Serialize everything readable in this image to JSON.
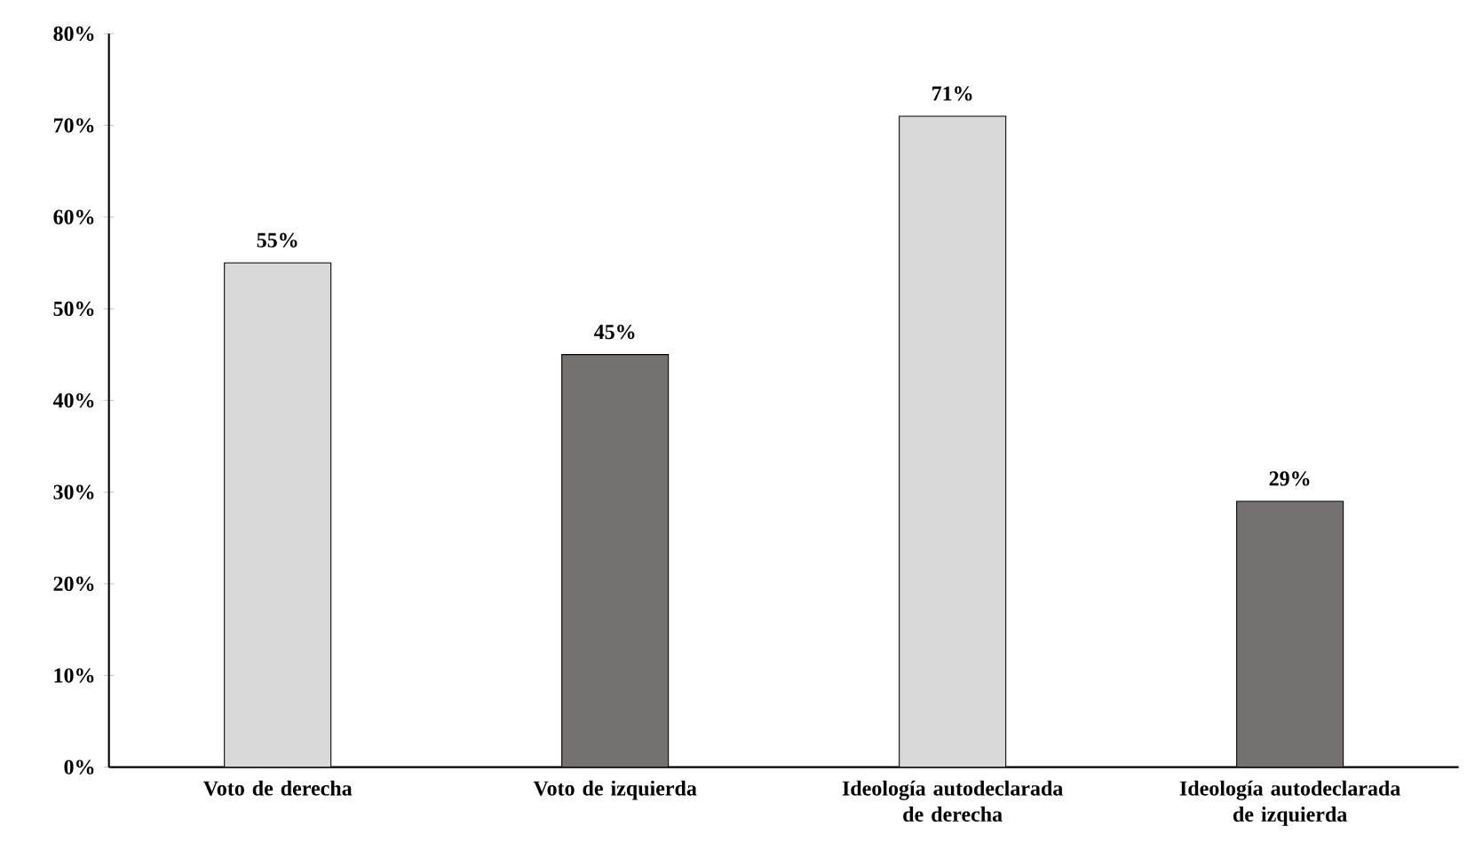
{
  "chart_data": {
    "type": "bar",
    "categories": [
      "Voto de derecha",
      "Voto de izquierda",
      "Ideología autodeclarada de derecha",
      "Ideología autodeclarada de izquierda"
    ],
    "values": [
      55,
      45,
      71,
      29
    ],
    "colors": [
      "#d9d9d9",
      "#767171",
      "#d9d9d9",
      "#767171"
    ],
    "value_labels": [
      "55%",
      "45%",
      "71%",
      "29%"
    ],
    "ylim": [
      0,
      80
    ],
    "yticks": [
      {
        "value": 0,
        "label": "0%"
      },
      {
        "value": 10,
        "label": "10%"
      },
      {
        "value": 20,
        "label": "20%"
      },
      {
        "value": 30,
        "label": "30%"
      },
      {
        "value": 40,
        "label": "40%"
      },
      {
        "value": 50,
        "label": "50%"
      },
      {
        "value": 60,
        "label": "60%"
      },
      {
        "value": 70,
        "label": "70%"
      },
      {
        "value": 80,
        "label": "80%"
      }
    ],
    "grid": false
  }
}
